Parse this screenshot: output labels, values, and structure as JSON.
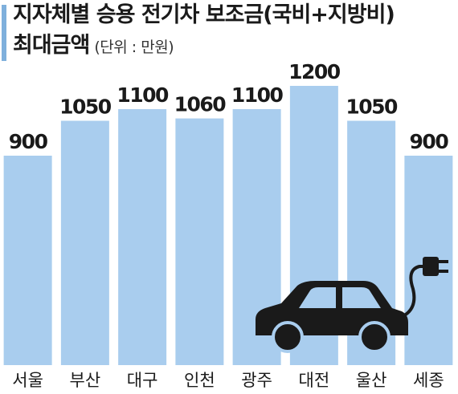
{
  "header": {
    "title_line1": "지자체별 승용 전기차 보조금(국비+지방비)",
    "title_line2": "최대금액",
    "unit": "(단위 : 만원)"
  },
  "colors": {
    "bar": "#a9cdee",
    "accent": "#7fb0dc",
    "text": "#1a1a1a",
    "car": "#1a1a1a"
  },
  "icons": [
    "electric-car-icon",
    "plug-icon"
  ],
  "chart_data": {
    "type": "bar",
    "title": "지자체별 승용 전기차 보조금(국비+지방비) 최대금액",
    "unit": "(단위 : 만원)",
    "categories": [
      "서울",
      "부산",
      "대구",
      "인천",
      "광주",
      "대전",
      "울산",
      "세종"
    ],
    "values": [
      900,
      1050,
      1100,
      1060,
      1100,
      1200,
      1050,
      900
    ],
    "value_labels": [
      "900",
      "1050",
      "1100",
      "1060",
      "1100",
      "1200",
      "1050",
      "900"
    ],
    "ylim": [
      0,
      1200
    ],
    "grid": false,
    "legend": "none"
  }
}
